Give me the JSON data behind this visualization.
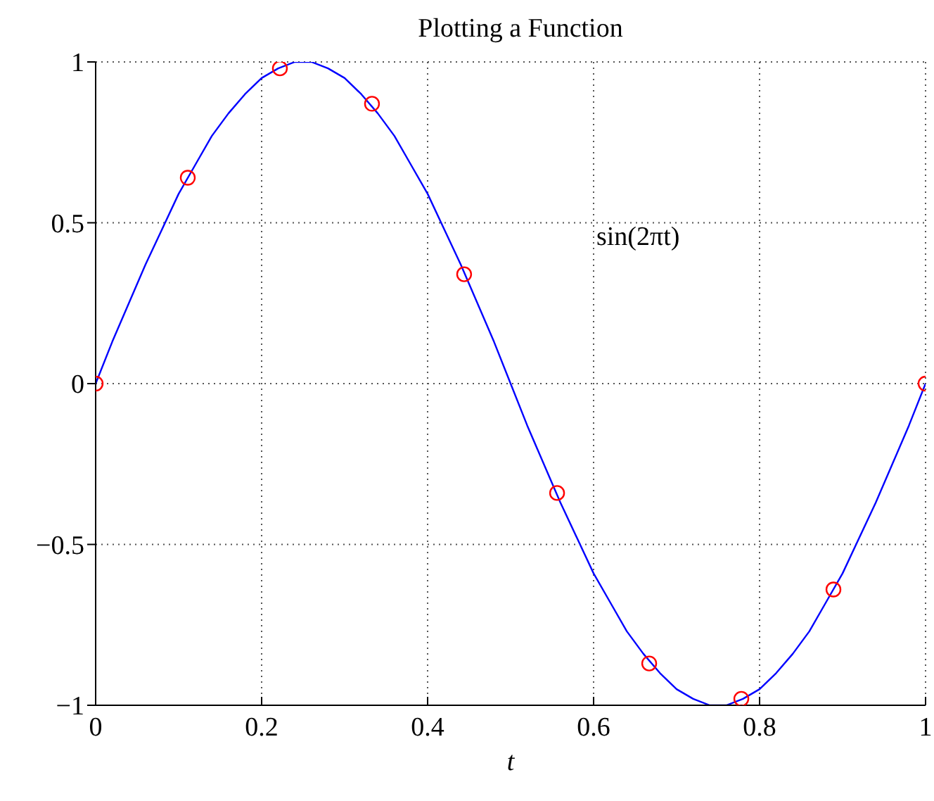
{
  "chart_data": {
    "type": "line",
    "title": "Plotting a Function",
    "xlabel": "t",
    "annotations": [
      "sin(2πt)"
    ],
    "xlim": [
      0,
      1
    ],
    "xticks": [
      0,
      0.2,
      0.4,
      0.6,
      0.8,
      1
    ],
    "ylim": [
      -1,
      1
    ],
    "yticks": [
      {
        "value": -1,
        "label": "−1"
      },
      {
        "value": -0.5,
        "label": "−0.5"
      },
      0,
      0.5,
      1
    ],
    "grid": true,
    "series": [
      {
        "color": "#0000ff",
        "marker": "none",
        "x": [
          0,
          0.02,
          0.04,
          0.06,
          0.08,
          0.1,
          0.12,
          0.14,
          0.16,
          0.18,
          0.2,
          0.22,
          0.24,
          0.26,
          0.28,
          0.3,
          0.32,
          0.34,
          0.36,
          0.38,
          0.4,
          0.42,
          0.44,
          0.46,
          0.48,
          0.5,
          0.52,
          0.54,
          0.56,
          0.58,
          0.6,
          0.62,
          0.64,
          0.66,
          0.68,
          0.7,
          0.72,
          0.74,
          0.76,
          0.78,
          0.8,
          0.82,
          0.84,
          0.86,
          0.88,
          0.9,
          0.92,
          0.94,
          0.96,
          0.98,
          1
        ],
        "values": [
          0,
          0.13,
          0.25,
          0.37,
          0.48,
          0.59,
          0.68,
          0.77,
          0.84,
          0.9,
          0.95,
          0.98,
          1,
          1,
          0.98,
          0.95,
          0.9,
          0.84,
          0.77,
          0.68,
          0.59,
          0.48,
          0.37,
          0.25,
          0.13,
          0,
          -0.13,
          -0.25,
          -0.37,
          -0.48,
          -0.59,
          -0.68,
          -0.77,
          -0.84,
          -0.9,
          -0.95,
          -0.98,
          -1,
          -1,
          -0.98,
          -0.95,
          -0.9,
          -0.84,
          -0.77,
          -0.68,
          -0.59,
          -0.48,
          -0.37,
          -0.25,
          -0.13,
          0
        ]
      },
      {
        "type": "scatter",
        "color": "#ff0000",
        "marker": "circle",
        "x": [
          0,
          0.111,
          0.222,
          0.333,
          0.444,
          0.556,
          0.667,
          0.778,
          0.889,
          1
        ],
        "values": [
          0,
          0.64,
          0.98,
          0.87,
          0.34,
          -0.34,
          -0.87,
          -0.98,
          -0.64,
          0
        ]
      }
    ]
  }
}
